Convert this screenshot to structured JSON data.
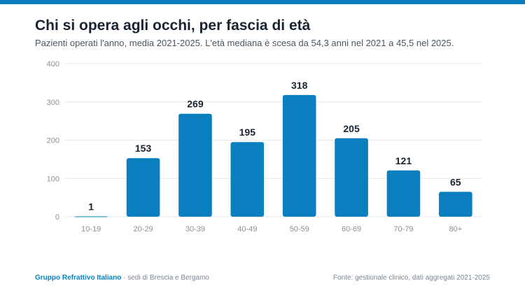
{
  "header": {
    "title": "Chi si opera agli occhi, per fascia di età",
    "subtitle": "Pazienti operati l'anno, media 2021-2025. L'età mediana è scesa da 54,3 anni nel 2021 a 45,5 nel 2025."
  },
  "chart_data": {
    "type": "bar",
    "title": "Chi si opera agli occhi, per fascia di età",
    "subtitle": "Pazienti operati l'anno, media 2021-2025. L'età mediana è scesa da 54,3 anni nel 2021 a 45,5 nel 2025.",
    "categories": [
      "10-19",
      "20-29",
      "30-39",
      "40-49",
      "50-59",
      "60-69",
      "70-79",
      "80+"
    ],
    "values": [
      1,
      153,
      269,
      195,
      318,
      205,
      121,
      65
    ],
    "xlabel": "",
    "ylabel": "",
    "ylim": [
      0,
      400
    ],
    "yticks": [
      0,
      100,
      200,
      300,
      400
    ],
    "grid": true,
    "legend": "none",
    "colors": {
      "bar": "#0a7fc0",
      "grid": "#e6e9ed",
      "tick_text": "#8a8f98",
      "value_text": "#1a2332"
    }
  },
  "footer": {
    "org": "Gruppo Refrattivo Italiano",
    "org_detail": "· sedi di Brescia e Bergamo",
    "source": "Fonte: gestionale clinico, dati aggregati 2021-2025"
  }
}
